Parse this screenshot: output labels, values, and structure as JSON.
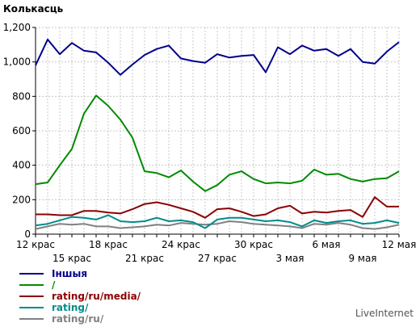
{
  "chart_data": {
    "type": "line",
    "ylabel": "Колькасць",
    "ylim": [
      0,
      1200
    ],
    "yticks": [
      0,
      200,
      400,
      600,
      800,
      1000,
      1200
    ],
    "ytick_labels": [
      "0",
      "200",
      "400",
      "600",
      "800",
      "1,000",
      "1,200"
    ],
    "x": [
      "12 крас",
      "13 крас",
      "14 крас",
      "15 крас",
      "16 крас",
      "17 крас",
      "18 крас",
      "19 крас",
      "20 крас",
      "21 крас",
      "22 крас",
      "23 крас",
      "24 крас",
      "25 крас",
      "26 крас",
      "27 крас",
      "28 крас",
      "29 крас",
      "30 крас",
      "1 мая",
      "2 мая",
      "3 мая",
      "4 мая",
      "5 мая",
      "6 мая",
      "7 мая",
      "8 мая",
      "9 мая",
      "10 мая",
      "11 мая",
      "12 мая"
    ],
    "xticks_top": [
      {
        "i": 0,
        "label": "12 крас"
      },
      {
        "i": 6,
        "label": "18 крас"
      },
      {
        "i": 12,
        "label": "24 крас"
      },
      {
        "i": 18,
        "label": "30 крас"
      },
      {
        "i": 24,
        "label": "6 мая"
      },
      {
        "i": 30,
        "label": "12 мая"
      }
    ],
    "xticks_bottom": [
      {
        "i": 3,
        "label": "15 крас"
      },
      {
        "i": 9,
        "label": "21 крас"
      },
      {
        "i": 15,
        "label": "27 крас"
      },
      {
        "i": 21,
        "label": "3 мая"
      },
      {
        "i": 27,
        "label": "9 мая"
      }
    ],
    "grid": true,
    "legend_position": "bottom-left",
    "series": [
      {
        "name": "Іншыя",
        "color": "#00008b",
        "values": [
          980,
          1130,
          1045,
          1110,
          1065,
          1055,
          995,
          925,
          985,
          1040,
          1075,
          1095,
          1020,
          1005,
          995,
          1045,
          1025,
          1035,
          1040,
          940,
          1085,
          1045,
          1095,
          1065,
          1075,
          1035,
          1075,
          1000,
          990,
          1060,
          1115
        ]
      },
      {
        "name": "/",
        "color": "#008b00",
        "values": [
          290,
          300,
          400,
          495,
          700,
          805,
          745,
          665,
          560,
          365,
          355,
          330,
          370,
          305,
          250,
          285,
          345,
          365,
          320,
          295,
          300,
          295,
          310,
          375,
          345,
          350,
          320,
          305,
          320,
          325,
          365
        ]
      },
      {
        "name": "rating/ru/media/",
        "color": "#8b0000",
        "values": [
          115,
          115,
          110,
          110,
          135,
          135,
          125,
          120,
          145,
          175,
          185,
          170,
          150,
          130,
          95,
          145,
          150,
          130,
          105,
          115,
          150,
          165,
          120,
          130,
          125,
          135,
          140,
          100,
          215,
          160,
          160
        ]
      },
      {
        "name": "rating/",
        "color": "#008b8b",
        "values": [
          50,
          60,
          80,
          100,
          95,
          85,
          110,
          75,
          70,
          75,
          95,
          75,
          80,
          70,
          35,
          85,
          95,
          95,
          85,
          75,
          80,
          70,
          45,
          80,
          65,
          75,
          80,
          60,
          65,
          80,
          65
        ]
      },
      {
        "name": "rating/ru/",
        "color": "#808080",
        "values": [
          30,
          45,
          60,
          55,
          60,
          45,
          45,
          35,
          40,
          45,
          55,
          50,
          65,
          60,
          55,
          60,
          75,
          70,
          60,
          55,
          50,
          45,
          35,
          60,
          55,
          65,
          55,
          35,
          30,
          40,
          55
        ]
      }
    ]
  },
  "brand": "LiveInternet"
}
